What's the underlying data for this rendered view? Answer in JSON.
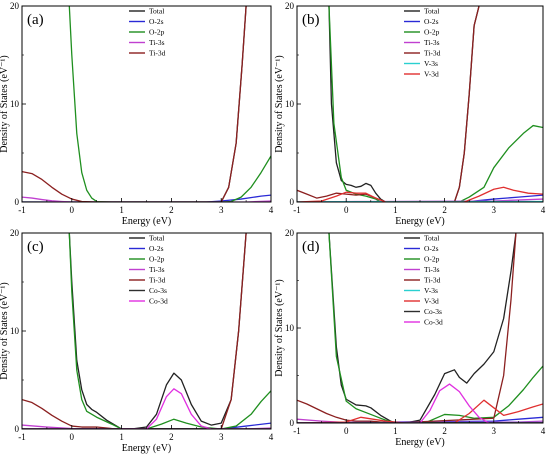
{
  "chart_data": [
    {
      "type": "line",
      "panel_label": "(a)",
      "xlabel": "Energy (eV)",
      "ylabel": "Density of States (eV⁻¹)",
      "xlim": [
        -1,
        4
      ],
      "ylim": [
        0,
        20
      ],
      "xticks": [
        -1,
        0,
        1,
        2,
        3,
        4
      ],
      "yticks": [
        0,
        10,
        20
      ],
      "legend_position": "top-right",
      "series": [
        {
          "name": "Total",
          "color": "#222222",
          "x": [
            -1,
            3.0,
            3.15,
            3.3,
            3.42,
            3.5
          ],
          "y": [
            0,
            0,
            1.5,
            6,
            14,
            20
          ]
        },
        {
          "name": "O-2s",
          "color": "#2a2ad6",
          "x": [
            -1,
            2.7,
            3.0,
            3.4,
            3.8,
            4.0
          ],
          "y": [
            0,
            0,
            0.1,
            0.3,
            0.6,
            0.7
          ]
        },
        {
          "name": "O-2p",
          "color": "#1f8f1f",
          "x": [
            -0.05,
            0.0,
            0.1,
            0.2,
            0.3,
            0.4,
            0.5,
            0.8,
            3.0,
            3.2,
            3.4,
            3.6,
            3.8,
            4.0
          ],
          "y": [
            20,
            15,
            7,
            3,
            1.2,
            0.4,
            0.05,
            0,
            0,
            0.05,
            0.5,
            1.5,
            3,
            4.7
          ]
        },
        {
          "name": "Ti-3s",
          "color": "#c040d0",
          "x": [
            -1,
            -0.8,
            -0.6,
            -0.4,
            -0.2,
            0.0,
            0.5,
            3.5,
            4.0
          ],
          "y": [
            0.5,
            0.4,
            0.25,
            0.12,
            0.05,
            0,
            0,
            0,
            0.1
          ]
        },
        {
          "name": "Ti-3d",
          "color": "#8b2020",
          "x": [
            -1,
            -0.8,
            -0.6,
            -0.4,
            -0.2,
            0.0,
            0.2,
            0.5,
            3.0,
            3.15,
            3.3,
            3.42,
            3.5
          ],
          "y": [
            3.1,
            2.9,
            2.3,
            1.5,
            0.8,
            0.3,
            0.05,
            0,
            0,
            1.5,
            6,
            14,
            20
          ]
        }
      ]
    },
    {
      "type": "line",
      "panel_label": "(b)",
      "xlabel": "Energy (eV)",
      "ylabel": "Density of States (eV⁻¹)",
      "xlim": [
        -1,
        4
      ],
      "ylim": [
        0,
        20
      ],
      "xticks": [
        -1,
        0,
        1,
        2,
        3,
        4
      ],
      "yticks": [
        0,
        10,
        20
      ],
      "legend_position": "top-right",
      "series": [
        {
          "name": "Total",
          "color": "#222222",
          "x": [
            -0.35,
            -0.3,
            -0.2,
            -0.1,
            0.0,
            0.1,
            0.2,
            0.3,
            0.4,
            0.5,
            0.6,
            0.7,
            0.8,
            2.2,
            2.3,
            2.4,
            2.5,
            2.6,
            2.7
          ],
          "y": [
            20,
            10,
            4,
            2.2,
            1.8,
            1.7,
            1.5,
            1.6,
            1.9,
            1.7,
            0.9,
            0.3,
            0,
            0,
            1.5,
            5,
            11,
            18,
            20
          ]
        },
        {
          "name": "O-2s",
          "color": "#2a2ad6",
          "x": [
            -1,
            2.4,
            3.0,
            3.5,
            4.0
          ],
          "y": [
            0,
            0,
            0.3,
            0.5,
            0.7
          ]
        },
        {
          "name": "O-2p",
          "color": "#1f8f1f",
          "x": [
            -0.35,
            -0.25,
            -0.1,
            0.0,
            0.2,
            0.4,
            0.6,
            0.7,
            2.3,
            2.5,
            2.8,
            3.0,
            3.3,
            3.6,
            3.8,
            4.0
          ],
          "y": [
            20,
            8,
            2.5,
            1.2,
            0.8,
            0.6,
            0.3,
            0,
            0,
            0.5,
            1.5,
            3.5,
            5.5,
            7.0,
            7.8,
            7.6
          ]
        },
        {
          "name": "Ti-3s",
          "color": "#c040d0",
          "x": [
            -1,
            0.2,
            0.5,
            3.0,
            4.0
          ],
          "y": [
            0,
            0.05,
            0.05,
            0.1,
            0.3
          ]
        },
        {
          "name": "Ti-3d",
          "color": "#8b2020",
          "x": [
            -1,
            -0.8,
            -0.6,
            -0.4,
            -0.2,
            0.0,
            0.2,
            0.4,
            0.6,
            0.8,
            2.2,
            2.3,
            2.4,
            2.5,
            2.6,
            2.7
          ],
          "y": [
            1.2,
            0.8,
            0.4,
            0.6,
            0.9,
            0.8,
            0.7,
            0.8,
            0.4,
            0,
            0,
            1.5,
            5,
            11,
            18,
            20
          ]
        },
        {
          "name": "V-3s",
          "color": "#2ad0d0",
          "x": [
            -1,
            4.0
          ],
          "y": [
            0.02,
            0.05
          ]
        },
        {
          "name": "V-3d",
          "color": "#e03030",
          "x": [
            -1,
            -0.5,
            -0.2,
            0.0,
            0.2,
            0.4,
            0.6,
            0.8,
            2.4,
            2.7,
            3.0,
            3.2,
            3.4,
            3.7,
            4.0
          ],
          "y": [
            0,
            0.1,
            0.6,
            1.0,
            0.9,
            0.9,
            0.4,
            0,
            0,
            0.6,
            1.3,
            1.5,
            1.2,
            0.9,
            0.8
          ]
        }
      ]
    },
    {
      "type": "line",
      "panel_label": "(c)",
      "xlabel": "Energy (eV)",
      "ylabel": "Density of States (eV⁻¹)",
      "xlim": [
        -1,
        4
      ],
      "ylim": [
        0,
        20
      ],
      "xticks": [
        -1,
        0,
        1,
        2,
        3,
        4
      ],
      "yticks": [
        0,
        10,
        20
      ],
      "legend_position": "top-right",
      "series": [
        {
          "name": "Total",
          "color": "#222222",
          "x": [
            -0.05,
            0.0,
            0.1,
            0.2,
            0.3,
            0.4,
            0.5,
            0.7,
            0.9,
            1.0,
            1.2,
            1.5,
            1.7,
            1.9,
            2.05,
            2.2,
            2.4,
            2.6,
            2.8,
            3.0,
            3.2,
            3.35,
            3.5
          ],
          "y": [
            20,
            15,
            7,
            4,
            2.5,
            2.0,
            1.7,
            0.9,
            0.3,
            0,
            0,
            0.2,
            1.5,
            4.5,
            5.7,
            5.0,
            2.5,
            0.8,
            0.4,
            0.6,
            3,
            10,
            20
          ]
        },
        {
          "name": "O-2s",
          "color": "#2a2ad6",
          "x": [
            -1,
            3.0,
            3.5,
            4.0
          ],
          "y": [
            0,
            0,
            0.3,
            0.6
          ]
        },
        {
          "name": "O-2p",
          "color": "#1f8f1f",
          "x": [
            -0.05,
            0.0,
            0.1,
            0.2,
            0.3,
            0.5,
            0.8,
            1.0,
            1.5,
            1.8,
            2.05,
            2.3,
            2.6,
            3.0,
            3.3,
            3.6,
            3.8,
            4.0
          ],
          "y": [
            20,
            14,
            6,
            3,
            1.8,
            1.2,
            0.5,
            0,
            0,
            0.5,
            1.0,
            0.6,
            0.2,
            0,
            0.3,
            1.5,
            2.8,
            3.9
          ]
        },
        {
          "name": "Ti-3s",
          "color": "#c040d0",
          "x": [
            -1,
            -0.5,
            0.0,
            3.5,
            4.0
          ],
          "y": [
            0.4,
            0.2,
            0.05,
            0,
            0.1
          ]
        },
        {
          "name": "Ti-3d",
          "color": "#8b2020",
          "x": [
            -1,
            -0.8,
            -0.6,
            -0.4,
            -0.2,
            0.0,
            0.2,
            0.5,
            0.8,
            1.0,
            3.0,
            3.2,
            3.35,
            3.5
          ],
          "y": [
            3.0,
            2.7,
            2.1,
            1.4,
            0.8,
            0.3,
            0.2,
            0.2,
            0.05,
            0,
            0,
            3,
            10,
            20
          ]
        },
        {
          "name": "Co-3s",
          "color": "#2e2e2e",
          "x": [
            -1,
            4.0
          ],
          "y": [
            0.02,
            0.02
          ]
        },
        {
          "name": "Co-3d",
          "color": "#e030e0",
          "x": [
            -1,
            1.5,
            1.7,
            1.9,
            2.05,
            2.2,
            2.4,
            2.6,
            2.8,
            4.0
          ],
          "y": [
            0,
            0,
            1.0,
            3.3,
            4.1,
            3.6,
            1.5,
            0.3,
            0,
            0
          ]
        }
      ]
    },
    {
      "type": "line",
      "panel_label": "(d)",
      "xlabel": "Energy (eV)",
      "ylabel": "Density of States (eV⁻¹)",
      "xlim": [
        -1,
        4
      ],
      "ylim": [
        0,
        20
      ],
      "xticks": [
        -1,
        0,
        1,
        2,
        3,
        4
      ],
      "yticks": [
        0,
        10,
        20
      ],
      "legend_position": "top-right",
      "series": [
        {
          "name": "Total",
          "color": "#222222",
          "x": [
            -0.35,
            -0.2,
            -0.1,
            0.0,
            0.2,
            0.4,
            0.5,
            0.7,
            0.9,
            1.0,
            1.2,
            1.5,
            1.8,
            2.0,
            2.2,
            2.3,
            2.45,
            2.6,
            2.8,
            3.0,
            3.2,
            3.35,
            3.45
          ],
          "y": [
            20,
            8,
            4,
            2.5,
            1.9,
            1.8,
            1.6,
            0.8,
            0.2,
            0,
            0,
            0.3,
            3,
            5.2,
            5.6,
            4.8,
            4.2,
            5.2,
            6.2,
            7.5,
            11,
            16,
            20
          ]
        },
        {
          "name": "O-2s",
          "color": "#2a2ad6",
          "x": [
            -1,
            3.0,
            3.5,
            4.0
          ],
          "y": [
            0,
            0.2,
            0.4,
            0.6
          ]
        },
        {
          "name": "O-2p",
          "color": "#1f8f1f",
          "x": [
            -0.35,
            -0.2,
            0.0,
            0.2,
            0.5,
            0.8,
            1.0,
            1.6,
            2.0,
            2.3,
            2.6,
            3.0,
            3.3,
            3.6,
            3.8,
            4.0
          ],
          "y": [
            20,
            7,
            2.3,
            1.5,
            0.9,
            0.3,
            0,
            0,
            0.9,
            0.8,
            0.5,
            0.6,
            1.8,
            3.5,
            4.8,
            6.0
          ]
        },
        {
          "name": "Ti-3s",
          "color": "#c040d0",
          "x": [
            -1,
            -0.5,
            0.0,
            3.5,
            4.0
          ],
          "y": [
            0.4,
            0.2,
            0.05,
            0.1,
            0.2
          ]
        },
        {
          "name": "Ti-3d",
          "color": "#8b2020",
          "x": [
            -1,
            -0.8,
            -0.6,
            -0.4,
            -0.2,
            0.0,
            0.2,
            0.5,
            0.8,
            1.0,
            3.0,
            3.2,
            3.35,
            3.45
          ],
          "y": [
            2.4,
            2.0,
            1.5,
            1.0,
            0.6,
            0.3,
            0.2,
            0.2,
            0.05,
            0,
            0.5,
            5,
            13,
            20
          ]
        },
        {
          "name": "V-3s",
          "color": "#2ad0d0",
          "x": [
            -1,
            4.0
          ],
          "y": [
            0.02,
            0.05
          ]
        },
        {
          "name": "V-3d",
          "color": "#e03030",
          "x": [
            -1,
            0.0,
            0.3,
            0.8,
            1.2,
            2.2,
            2.5,
            2.8,
            3.0,
            3.2,
            3.5,
            3.8,
            4.0
          ],
          "y": [
            0,
            0.1,
            0.6,
            0.2,
            0,
            0,
            1.0,
            2.4,
            1.6,
            0.8,
            1.2,
            1.7,
            2.0
          ]
        },
        {
          "name": "Co-3s",
          "color": "#2e2e2e",
          "x": [
            -1,
            4.0
          ],
          "y": [
            0.02,
            0.02
          ]
        },
        {
          "name": "Co-3d",
          "color": "#e030e0",
          "x": [
            -1,
            1.5,
            1.7,
            1.9,
            2.1,
            2.3,
            2.5,
            2.7,
            2.9,
            4.0
          ],
          "y": [
            0,
            0,
            1.3,
            3.4,
            4.1,
            3.3,
            1.8,
            0.6,
            0,
            0
          ]
        }
      ]
    }
  ]
}
